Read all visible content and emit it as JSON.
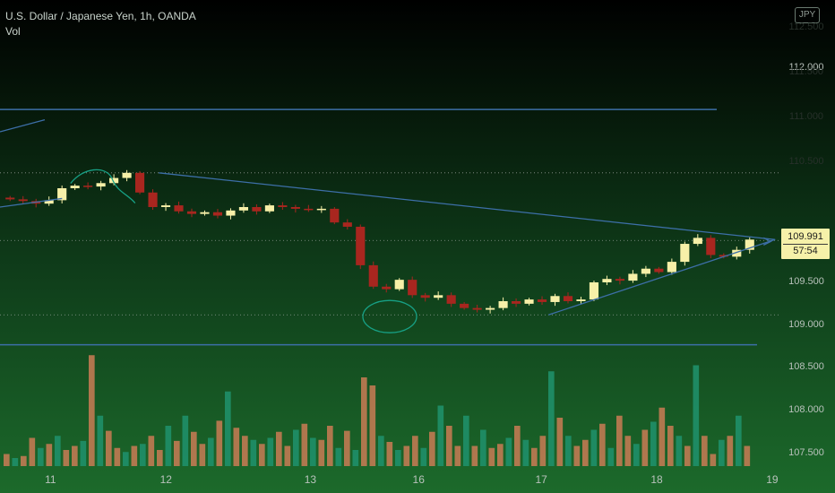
{
  "header": {
    "symbol_line": "U.S. Dollar / Japanese Yen, 1h, OANDA",
    "volume_label": "Vol",
    "currency_badge": "JPY"
  },
  "colors": {
    "up": "#f7f0a8",
    "down": "#a8261f",
    "vol_up": "#1f8f69",
    "vol_down": "#c07a52",
    "trendline": "#3d6fa8",
    "hand_drawn": "#17a085",
    "price_line": "#c8c8c8"
  },
  "chart_data": {
    "type": "candlestick",
    "symbol": "USDJPY",
    "interval": "1h",
    "source": "OANDA",
    "last_price": "109.991",
    "countdown": "57:54",
    "y_ticks": [
      {
        "label": "112.000",
        "value": 112.0
      },
      {
        "label": "109.500",
        "value": 109.5
      },
      {
        "label": "109.000",
        "value": 109.0
      },
      {
        "label": "108.500",
        "value": 108.5
      },
      {
        "label": "108.000",
        "value": 108.0
      },
      {
        "label": "107.500",
        "value": 107.5
      }
    ],
    "y_ticks_faint": [
      "112.500",
      "111.500",
      "111.000",
      "110.500"
    ],
    "x_ticks": [
      {
        "label": "11",
        "value": 2.0
      },
      {
        "label": "12",
        "value": 10.0
      },
      {
        "label": "13",
        "value": 20.0
      },
      {
        "label": "16",
        "value": 27.5
      },
      {
        "label": "17",
        "value": 36.0
      },
      {
        "label": "18",
        "value": 44.0
      },
      {
        "label": "19",
        "value": 52.0
      }
    ],
    "price_range": [
      107.3,
      112.8
    ],
    "x_range": [
      -1.5,
      52.5
    ],
    "closes": [
      110.47,
      110.45,
      110.42,
      110.46,
      110.6,
      110.63,
      110.62,
      110.66,
      110.72,
      110.78,
      110.55,
      110.38,
      110.4,
      110.33,
      110.3,
      110.32,
      110.28,
      110.34,
      110.38,
      110.33,
      110.4,
      110.38,
      110.36,
      110.35,
      110.36,
      110.2,
      110.15,
      109.7,
      109.45,
      109.42,
      109.53,
      109.35,
      109.32,
      109.35,
      109.25,
      109.2,
      109.18,
      109.2,
      109.28,
      109.25,
      109.3,
      109.27,
      109.34,
      109.28,
      109.3,
      109.5,
      109.54,
      109.52,
      109.6,
      109.66,
      109.62,
      109.74,
      109.95,
      110.02,
      109.82,
      109.8,
      109.88,
      110.0
    ],
    "volumes": [
      12,
      8,
      10,
      28,
      18,
      22,
      30,
      16,
      20,
      25,
      110,
      50,
      35,
      18,
      14,
      20,
      22,
      30,
      16,
      40,
      25,
      50,
      34,
      22,
      28,
      45,
      74,
      38,
      30,
      26,
      22,
      28,
      34,
      20,
      36,
      42,
      28,
      26,
      40,
      18,
      35,
      16,
      88,
      80,
      30,
      24,
      16,
      20,
      30,
      18,
      34,
      60,
      40,
      20,
      50,
      20,
      36,
      18,
      22,
      28,
      40,
      26,
      18,
      30,
      94,
      48,
      30,
      20,
      26,
      36,
      42,
      18,
      50,
      30,
      22,
      36,
      44,
      58,
      40,
      30,
      20,
      100,
      30,
      12,
      26,
      30,
      50,
      20
    ],
    "volume_colors": "mixed",
    "overlays": [
      {
        "type": "horizontal_line",
        "price": 111.52
      },
      {
        "type": "horizontal_line",
        "price": 108.77
      },
      {
        "type": "trendline",
        "from": [
          9.5,
          110.78
        ],
        "to": [
          52.2,
          110.0
        ]
      },
      {
        "type": "trendline",
        "from": [
          36.5,
          109.12
        ],
        "to": [
          52.2,
          110.0
        ]
      },
      {
        "type": "trendline",
        "from": [
          -1.5,
          110.38
        ],
        "to": [
          2.8,
          110.48
        ]
      },
      {
        "type": "trendline",
        "from": [
          -1.5,
          111.26
        ],
        "to": [
          1.6,
          111.4
        ]
      }
    ],
    "reference_lines": [
      110.78,
      109.99,
      109.12
    ]
  }
}
